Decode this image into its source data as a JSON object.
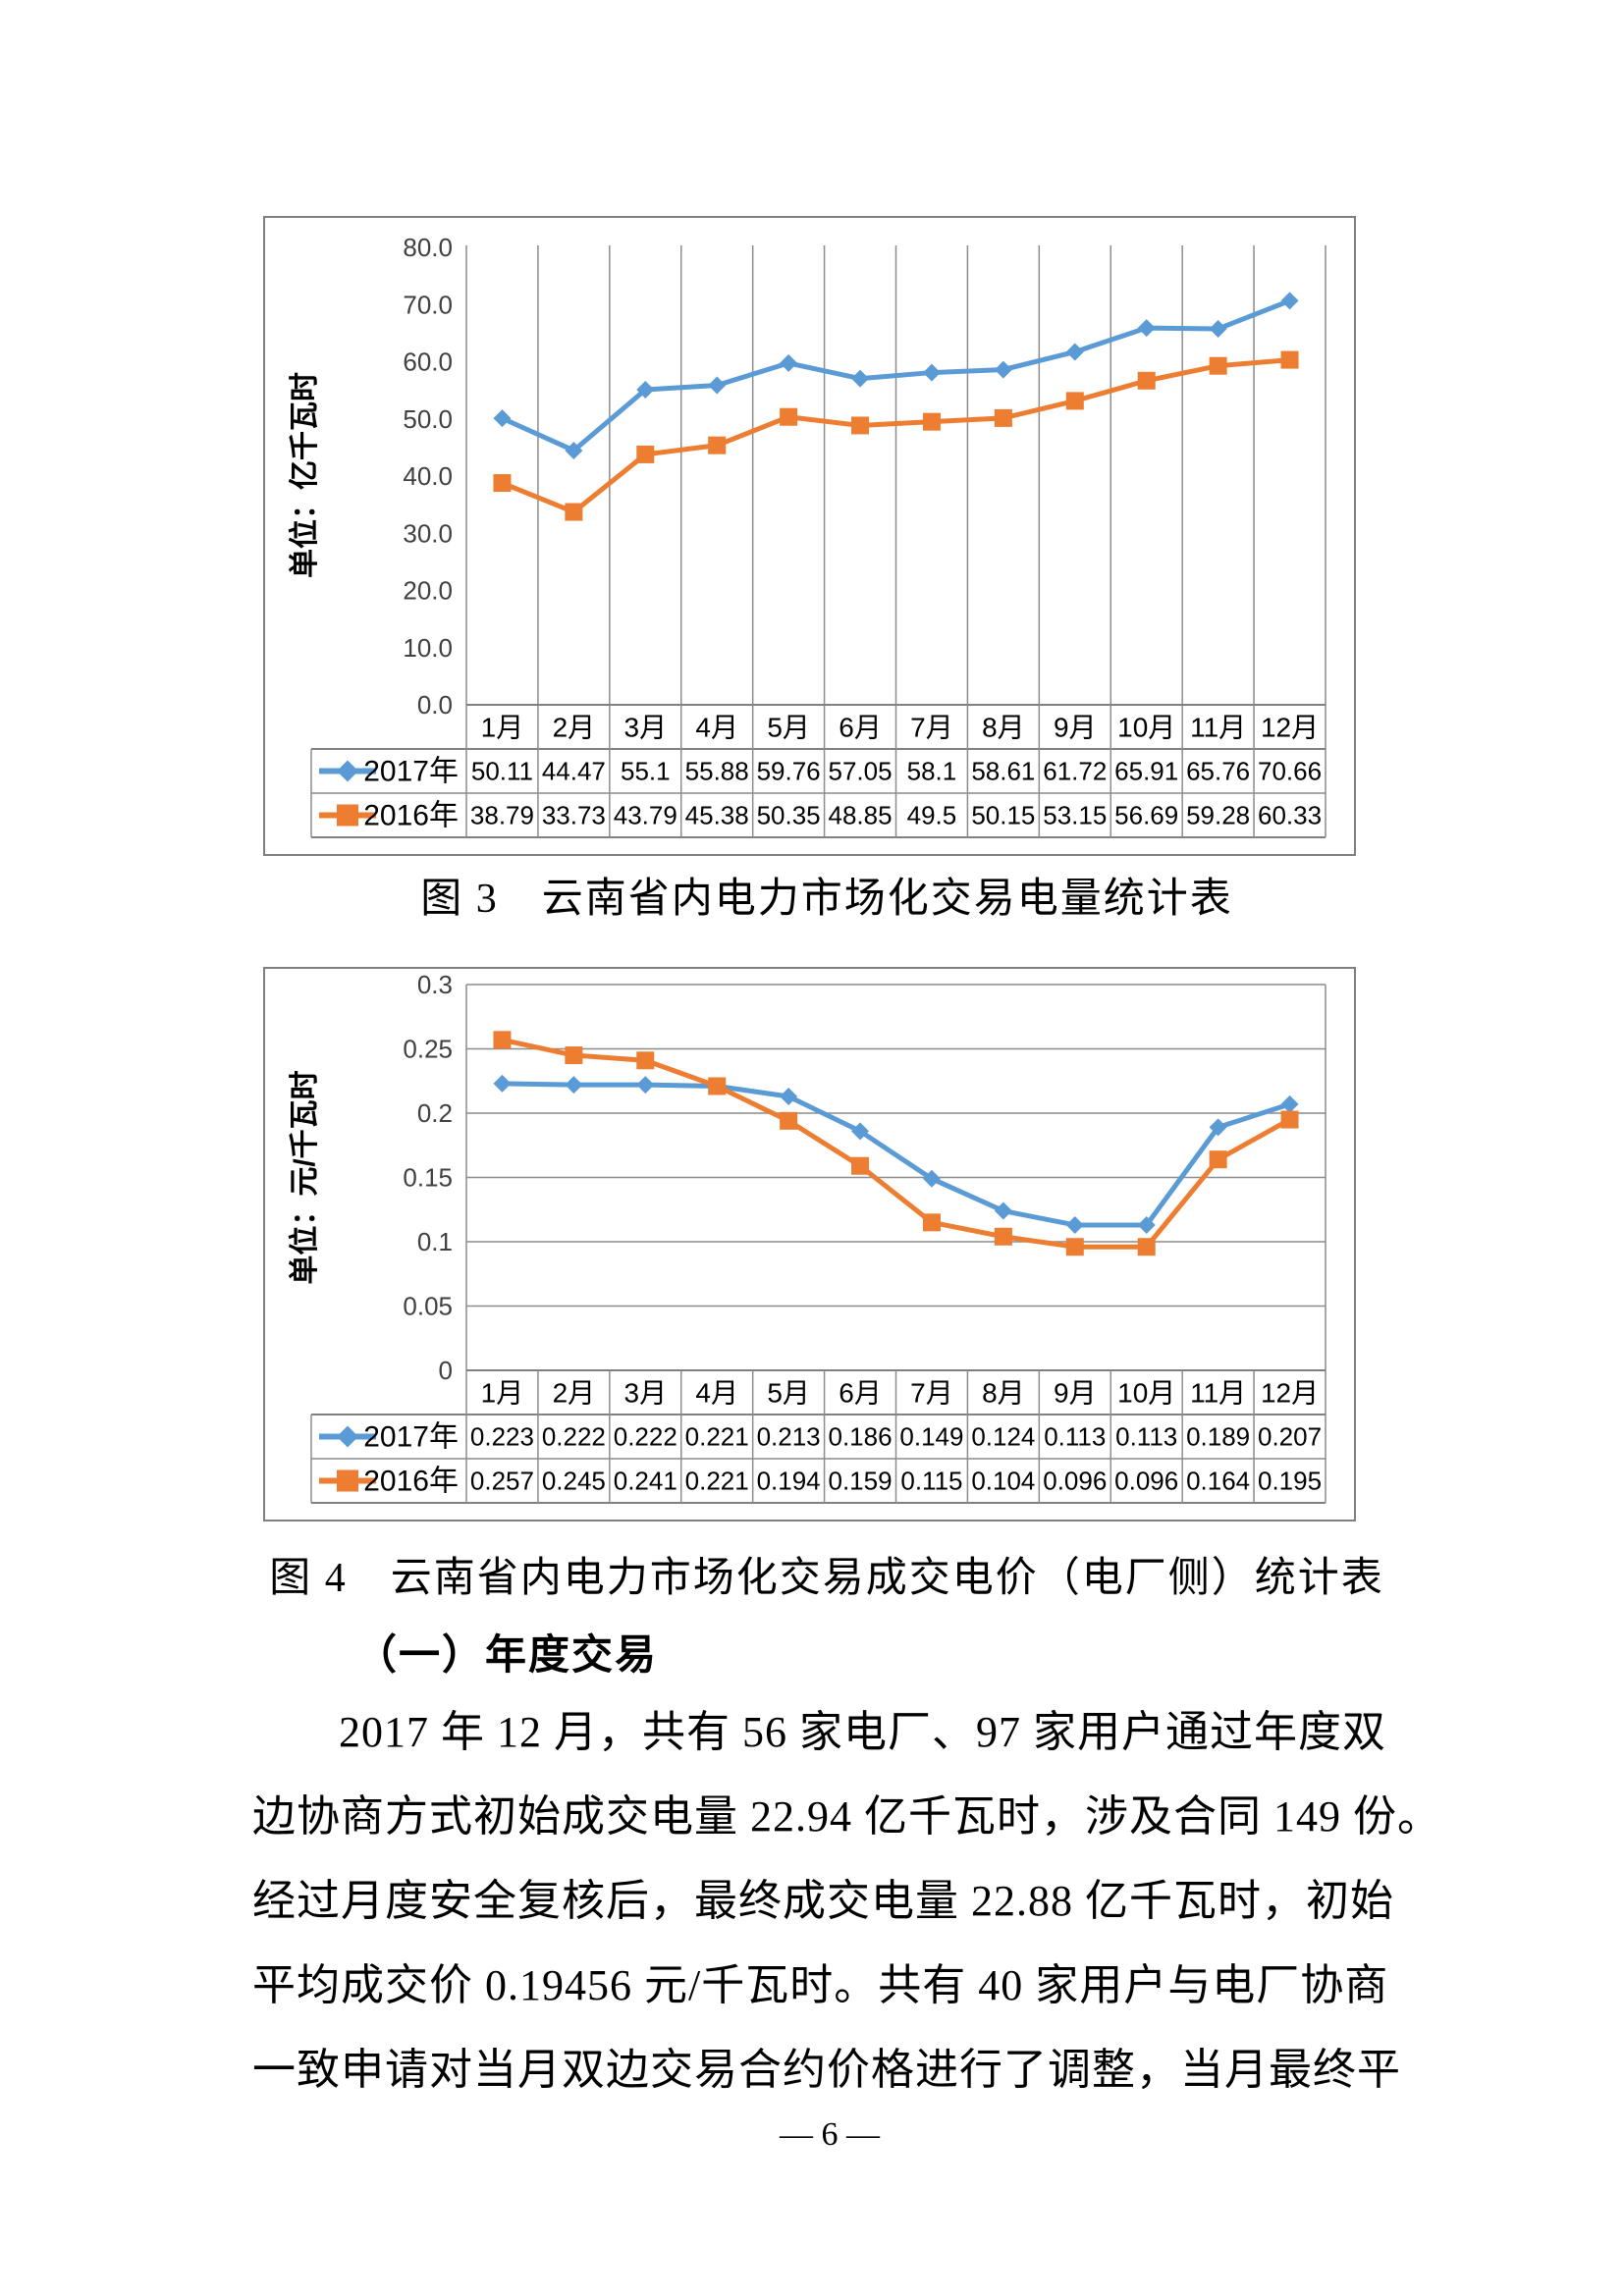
{
  "page": {
    "number": "— 6 —"
  },
  "section": {
    "heading": "（一）年度交易"
  },
  "body": {
    "lines": [
      "2017 年 12 月，共有 56 家电厂、97 家用户通过年度双",
      "边协商方式初始成交电量 22.94 亿千瓦时，涉及合同 149 份。",
      "经过月度安全复核后，最终成交电量 22.88 亿千瓦时，初始",
      "平均成交价 0.19456 元/千瓦时。共有 40 家用户与电厂协商",
      "一致申请对当月双边交易合约价格进行了调整，当月最终平"
    ]
  },
  "chart_data": [
    {
      "type": "line",
      "name": "figure-3",
      "caption": "图 3　云南省内电力市场化交易电量统计表",
      "ylabel": "单位：亿千瓦时",
      "xlabel": "",
      "categories": [
        "1月",
        "2月",
        "3月",
        "4月",
        "5月",
        "6月",
        "7月",
        "8月",
        "9月",
        "10月",
        "11月",
        "12月"
      ],
      "series": [
        {
          "name": "2017年",
          "color": "#5B9BD5",
          "marker": "diamond",
          "values": [
            50.11,
            44.47,
            55.1,
            55.88,
            59.76,
            57.05,
            58.1,
            58.61,
            61.72,
            65.91,
            65.76,
            70.66
          ]
        },
        {
          "name": "2016年",
          "color": "#ED7D31",
          "marker": "square",
          "values": [
            38.79,
            33.73,
            43.79,
            45.38,
            50.35,
            48.85,
            49.5,
            50.15,
            53.15,
            56.69,
            59.28,
            60.33
          ]
        }
      ],
      "ylim": [
        0,
        80
      ],
      "ytick_labels": [
        "0.0",
        "10.0",
        "20.0",
        "30.0",
        "40.0",
        "50.0",
        "60.0",
        "70.0",
        "80.0"
      ],
      "grid": "vertical",
      "legend_position": "data-table"
    },
    {
      "type": "line",
      "name": "figure-4",
      "caption": "图 4　云南省内电力市场化交易成交电价（电厂侧）统计表",
      "ylabel": "单位：元/千瓦时",
      "xlabel": "",
      "categories": [
        "1月",
        "2月",
        "3月",
        "4月",
        "5月",
        "6月",
        "7月",
        "8月",
        "9月",
        "10月",
        "11月",
        "12月"
      ],
      "series": [
        {
          "name": "2017年",
          "color": "#5B9BD5",
          "marker": "diamond",
          "values": [
            0.223,
            0.222,
            0.222,
            0.221,
            0.213,
            0.186,
            0.149,
            0.124,
            0.113,
            0.113,
            0.189,
            0.207
          ]
        },
        {
          "name": "2016年",
          "color": "#ED7D31",
          "marker": "square",
          "values": [
            0.257,
            0.245,
            0.241,
            0.221,
            0.194,
            0.159,
            0.115,
            0.104,
            0.096,
            0.096,
            0.164,
            0.195
          ]
        }
      ],
      "ylim": [
        0,
        0.3
      ],
      "ytick_labels": [
        "0",
        "0.05",
        "0.1",
        "0.15",
        "0.2",
        "0.25",
        "0.3"
      ],
      "grid": "horizontal",
      "legend_position": "data-table"
    }
  ],
  "colors": {
    "series_2017": "#5B9BD5",
    "series_2016": "#ED7D31",
    "gridline": "#8C8C8C",
    "chart_border": "#808080"
  }
}
